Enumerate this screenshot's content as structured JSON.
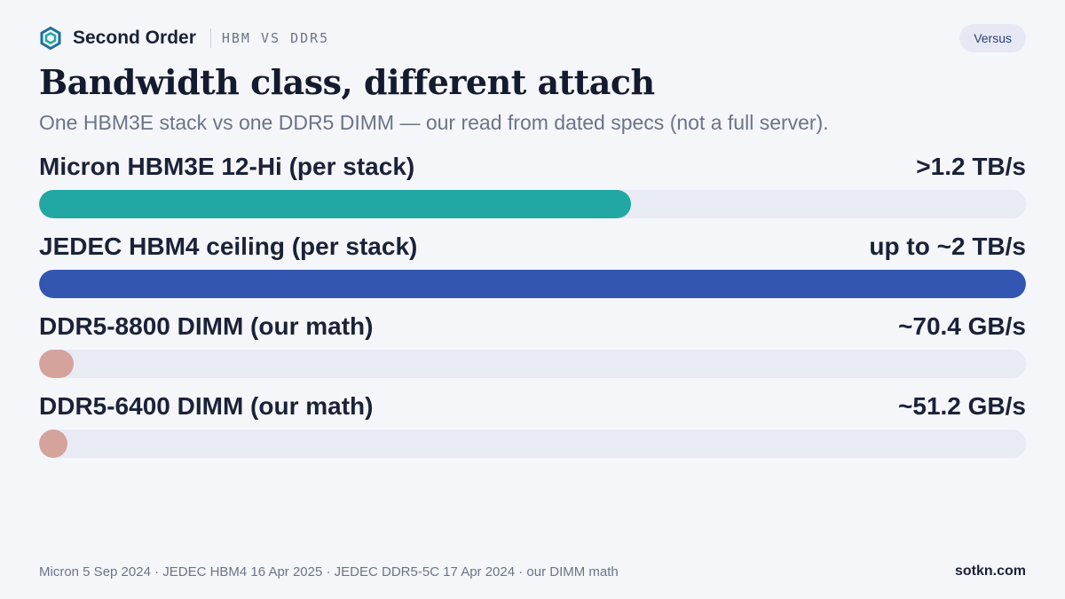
{
  "header": {
    "brand": "Second Order",
    "tag": "HBM VS DDR5",
    "badge": "Versus",
    "logo_icon": "hexagon-logo-icon",
    "logo_color": "#1f6f9c"
  },
  "title": "Bandwidth class, different attach",
  "subtitle": "One HBM3E stack vs one DDR5 DIMM — our read from dated specs (not a full server).",
  "chart_data": {
    "type": "bar",
    "orientation": "horizontal",
    "unit": "TB/s",
    "xlim": [
      0,
      2
    ],
    "grid": false,
    "categories": [
      "Micron HBM3E 12-Hi (per stack)",
      "JEDEC HBM4 ceiling (per stack)",
      "DDR5-8800 DIMM (our math)",
      "DDR5-6400 DIMM (our math)"
    ],
    "values": [
      1.2,
      2.0,
      0.0704,
      0.0512
    ],
    "value_labels": [
      ">1.2 TB/s",
      "up to ~2 TB/s",
      "~70.4 GB/s",
      "~51.2 GB/s"
    ],
    "colors": [
      "#22a8a2",
      "#3357b0",
      "#d4a39c",
      "#d4a39c"
    ],
    "track_color": "#e8ebf4"
  },
  "footer": {
    "sources": "Micron 5 Sep 2024 · JEDEC HBM4 16 Apr 2025 · JEDEC DDR5-5C 17 Apr 2024 · our DIMM math",
    "site": "sotkn.com"
  }
}
